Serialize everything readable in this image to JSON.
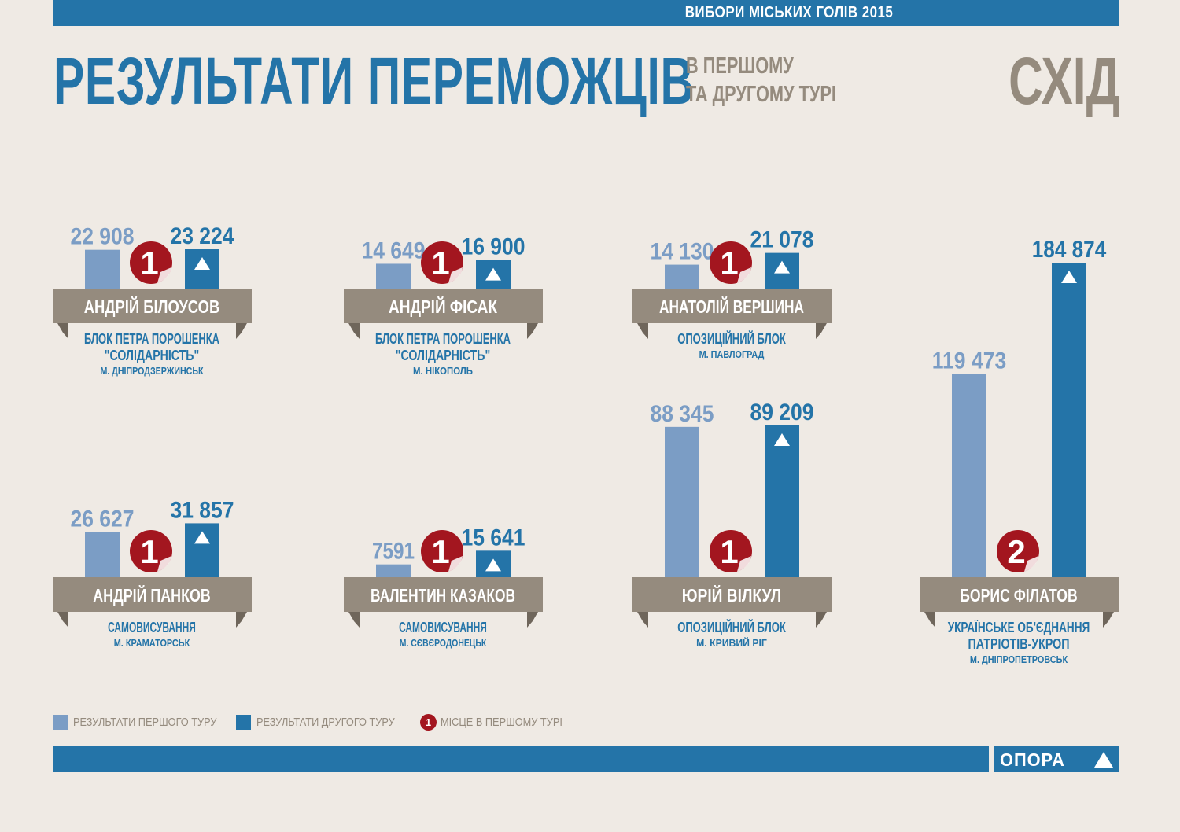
{
  "header": {
    "top_label": "ВИБОРИ МІСЬКИХ ГОЛІВ 2015",
    "title": "РЕЗУЛЬТАТИ ПЕРЕМОЖЦІВ",
    "subtitle_line1": "В ПЕРШОМУ",
    "subtitle_line2": "ТА ДРУГОМУ ТУРІ",
    "region": "СХІД"
  },
  "colors": {
    "first_round": "#7b9dc5",
    "second_round": "#2474a8",
    "place_badge": "#a3161f",
    "ribbon": "#958b7e",
    "ribbon_dark": "#6f665b",
    "text_blue": "#2474a8"
  },
  "chart_data": {
    "type": "bar",
    "title": "РЕЗУЛЬТАТИ ПЕРЕМОЖЦІВ В ПЕРШОМУ ТА ДРУГОМУ ТУРІ",
    "series_names": [
      "РЕЗУЛЬТАТИ ПЕРШОГО ТУРУ",
      "РЕЗУЛЬТАТИ ДРУГОГО ТУРУ"
    ],
    "candidates": [
      {
        "name": "АНДРІЙ БІЛОУСОВ",
        "party_lines": [
          "БЛОК ПЕТРА ПОРОШЕНКА",
          "\"СОЛІДАРНІСТЬ\""
        ],
        "city": "М. ДНІПРОДЗЕРЖИНСЬК",
        "round1": 22908,
        "round1_label": "22 908",
        "round2": 23224,
        "round2_label": "23 224",
        "place": 1
      },
      {
        "name": "АНДРІЙ ФІСАК",
        "party_lines": [
          "БЛОК ПЕТРА ПОРОШЕНКА",
          "\"СОЛІДАРНІСТЬ\""
        ],
        "city": "М. НІКОПОЛЬ",
        "round1": 14649,
        "round1_label": "14 649",
        "round2": 16900,
        "round2_label": "16 900",
        "place": 1
      },
      {
        "name": "АНАТОЛІЙ ВЕРШИНА",
        "party_lines": [
          "ОПОЗИЦІЙНИЙ БЛОК"
        ],
        "city": "М. ПАВЛОГРАД",
        "round1": 14130,
        "round1_label": "14 130",
        "round2": 21078,
        "round2_label": "21 078",
        "place": 1
      },
      {
        "name": "АНДРІЙ ПАНКОВ",
        "party_lines": [
          "САМОВИСУВАННЯ"
        ],
        "city": "М. КРАМАТОРСЬК",
        "round1": 26627,
        "round1_label": "26 627",
        "round2": 31857,
        "round2_label": "31 857",
        "place": 1
      },
      {
        "name": "ВАЛЕНТИН КАЗАКОВ",
        "party_lines": [
          "САМОВИСУВАННЯ"
        ],
        "city": "М. СЄВЄРОДОНЕЦЬК",
        "round1": 7591,
        "round1_label": "7591",
        "round2": 15641,
        "round2_label": "15 641",
        "place": 1
      },
      {
        "name": "ЮРІЙ ВІЛКУЛ",
        "party_lines": [
          "ОПОЗИЦІЙНИЙ БЛОК"
        ],
        "city": "М. КРИВИЙ РІГ",
        "round1": 88345,
        "round1_label": "88 345",
        "round2": 89209,
        "round2_label": "89 209",
        "place": 1
      },
      {
        "name": "БОРИС ФІЛАТОВ",
        "party_lines": [
          "УКРАЇНСЬКЕ ОБ'ЄДНАННЯ",
          "ПАТРІОТІВ-УКРОП"
        ],
        "city": "М. ДНІПРОПЕТРОВСЬК",
        "round1": 119473,
        "round1_label": "119 473",
        "round2": 184874,
        "round2_label": "184 874",
        "place": 2
      }
    ]
  },
  "legend": {
    "first_round": "РЕЗУЛЬТАТИ ПЕРШОГО ТУРУ",
    "second_round": "РЕЗУЛЬТАТИ ДРУГОГО ТУРУ",
    "place_sample": "1",
    "place": "МІСЦЕ В ПЕРШОМУ ТУРІ"
  },
  "footer": {
    "logo": "ОПОРА"
  }
}
